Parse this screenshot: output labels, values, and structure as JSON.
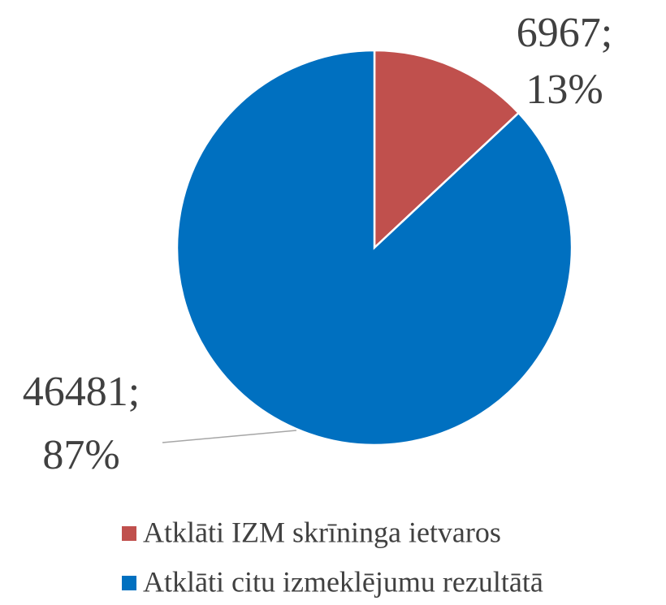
{
  "chart_data": {
    "type": "pie",
    "categories": [
      "Atklāti IZM skrīninga ietvaros",
      "Atklāti citu izmeklējumu rezultātā"
    ],
    "values": [
      6967,
      46481
    ],
    "value_labels": [
      [
        "6967;",
        "13%"
      ],
      [
        "46481;",
        "87%"
      ]
    ],
    "colors": [
      "#c0504d",
      "#0070c0"
    ],
    "legend": "bottom"
  }
}
